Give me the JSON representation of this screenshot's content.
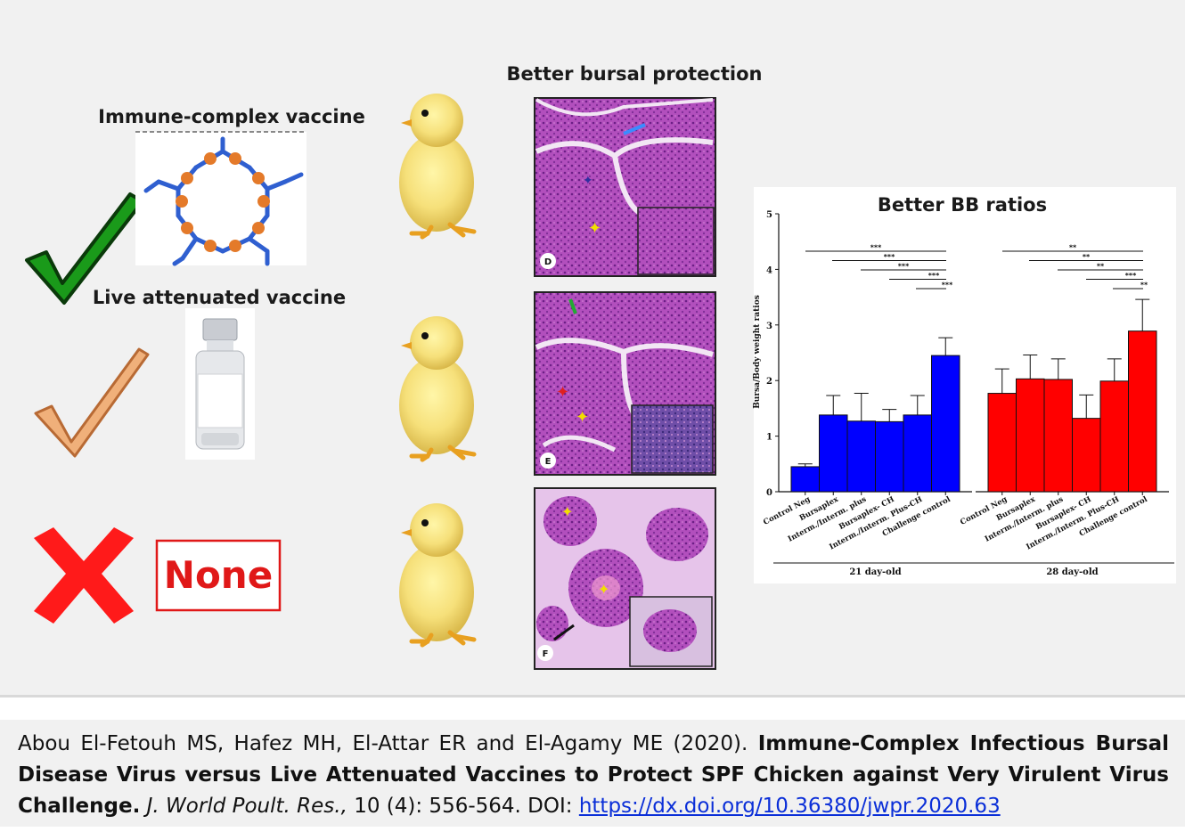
{
  "labels": {
    "immune_complex": "Immune-complex vaccine",
    "live_attenuated": "Live attenuated vaccine",
    "none": "None",
    "bursal_title": "Better bursal protection",
    "panel_d": "D",
    "panel_e": "E",
    "panel_f": "F"
  },
  "chart_data": {
    "type": "bar",
    "title": "Better BB ratios",
    "ylabel": "Bursa/Body weight ratios",
    "ylim": [
      0,
      5
    ],
    "yticks": [
      0,
      1,
      2,
      3,
      4,
      5
    ],
    "categories": [
      "Control Neg",
      "Bursaplex",
      "Interm./Interm. plus",
      "Bursaplex- CH",
      "Interm./Interm. Plus-CH",
      "Challenge control"
    ],
    "series": [
      {
        "name": "21 day-old",
        "color": "#0000ff",
        "values": [
          0.45,
          1.38,
          1.27,
          1.26,
          1.38,
          2.45
        ],
        "errors": [
          0.05,
          0.35,
          0.5,
          0.22,
          0.35,
          0.32
        ]
      },
      {
        "name": "28 day-old",
        "color": "#ff0000",
        "values": [
          1.77,
          2.03,
          2.02,
          1.32,
          1.99,
          2.89
        ],
        "errors": [
          0.44,
          0.43,
          0.37,
          0.42,
          0.4,
          0.57
        ]
      }
    ],
    "significance": [
      {
        "group": "21 day-old",
        "marks": [
          "***",
          "***",
          "***",
          "***",
          "***"
        ]
      },
      {
        "group": "28 day-old",
        "marks": [
          "**",
          "**",
          "**",
          "***",
          "**"
        ]
      }
    ]
  },
  "citation": {
    "authors": "Abou El-Fetouh MS, Hafez MH, El-Attar ER and El-Agamy ME (2020).",
    "title": "Immune-Complex Infectious Bursal Disease Virus versus Live Attenuated Vaccines to Protect SPF Chicken against Very Virulent Virus Challenge.",
    "journal": "J. World Poult. Res.,",
    "volume": "10 (4): 556-564. DOI:",
    "doi": "https://dx.doi.org/10.36380/jwpr.2020.63"
  }
}
